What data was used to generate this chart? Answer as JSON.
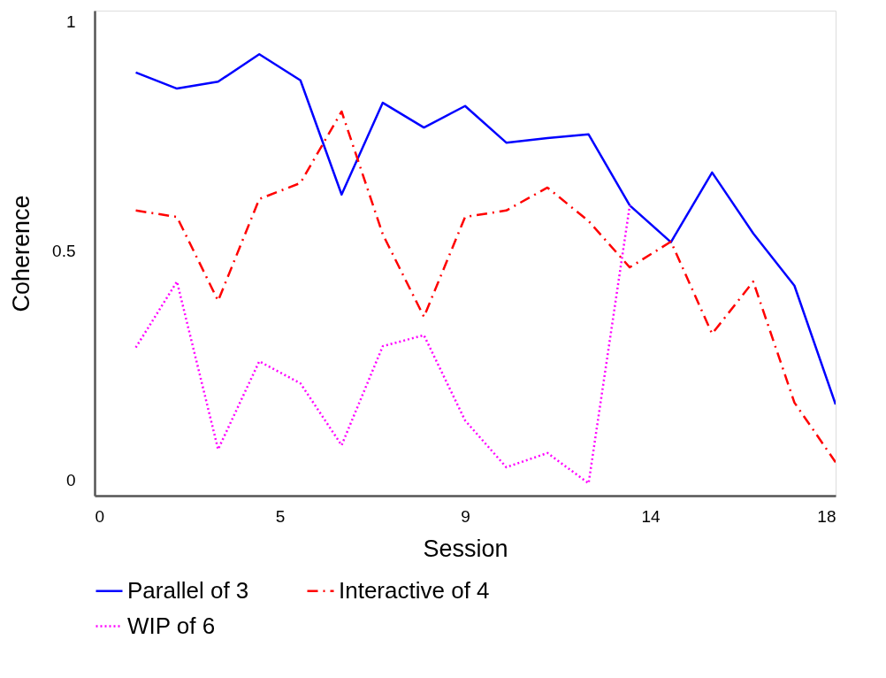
{
  "chart_data": {
    "type": "line",
    "xlabel": "Session",
    "ylabel": "Coherence",
    "x": [
      1,
      2,
      3,
      4,
      5,
      6,
      7,
      8,
      9,
      10,
      11,
      12,
      13,
      14,
      15,
      16,
      17,
      18
    ],
    "xlim": [
      0,
      18
    ],
    "xticks": [
      0,
      {
        "value": 4.5,
        "label": "5"
      },
      9,
      {
        "value": 13.5,
        "label": "14"
      },
      18
    ],
    "ylim": [
      -0.033,
      1.025
    ],
    "yticks": [
      0,
      0.5,
      1
    ],
    "grid": false,
    "legend": "bottom",
    "marker": "none",
    "series": [
      {
        "name": "Parallel of 3",
        "color": "#0000ff",
        "line_style": "solid",
        "values": [
          0.89,
          0.855,
          0.87,
          0.93,
          0.873,
          0.624,
          0.824,
          0.77,
          0.817,
          0.737,
          0.747,
          0.755,
          0.6,
          0.52,
          0.672,
          0.539,
          0.425,
          0.166
        ]
      },
      {
        "name": "Interactive of 4",
        "color": "#ff0000",
        "line_style": "dashdot",
        "values": [
          0.589,
          0.575,
          0.392,
          0.614,
          0.649,
          0.805,
          0.537,
          0.357,
          0.575,
          0.589,
          0.639,
          0.566,
          0.465,
          0.521,
          0.32,
          0.434,
          0.17,
          0.04
        ]
      },
      {
        "name": "WIP of 6",
        "color": "#ff00ff",
        "line_style": "dotted",
        "values": [
          0.29,
          0.434,
          0.068,
          0.26,
          0.212,
          0.077,
          0.293,
          0.317,
          0.131,
          0.029,
          0.06,
          -0.006,
          0.6,
          null,
          null,
          null,
          null,
          null
        ]
      }
    ]
  }
}
